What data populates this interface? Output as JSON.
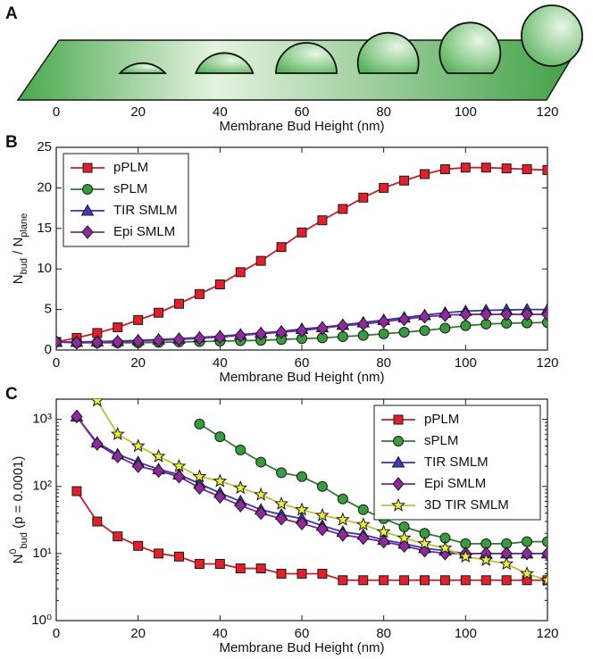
{
  "chart_data": [
    {
      "type": "illustration",
      "label": "A",
      "xlabel": "Membrane Bud Height (nm)",
      "xlim": [
        0,
        120
      ],
      "xticks": [
        0,
        20,
        40,
        60,
        80,
        100,
        120
      ],
      "x": [
        20,
        40,
        60,
        80,
        100,
        120
      ]
    },
    {
      "type": "line",
      "label": "B",
      "xlabel": "Membrane Bud Height (nm)",
      "ylabel_parts": [
        {
          "text": "N"
        },
        {
          "text": "bud",
          "style": "sub"
        },
        {
          "text": " / N"
        },
        {
          "text": "plane",
          "style": "sub"
        }
      ],
      "xlim": [
        0,
        120
      ],
      "xticks": [
        0,
        20,
        40,
        60,
        80,
        100,
        120
      ],
      "ylim": [
        0,
        25
      ],
      "yticks": [
        0,
        5,
        10,
        15,
        20,
        25
      ],
      "log": false,
      "legend": "upper left",
      "x": [
        0,
        5,
        10,
        15,
        20,
        25,
        30,
        35,
        40,
        45,
        50,
        55,
        60,
        65,
        70,
        75,
        80,
        85,
        90,
        95,
        100,
        105,
        110,
        115,
        120
      ],
      "series": [
        {
          "name": "pPLM",
          "color": "#e0202a",
          "line_color": "#c81e24",
          "marker": "square",
          "values": [
            1,
            1.5,
            2.1,
            2.8,
            3.7,
            4.6,
            5.7,
            6.9,
            8.1,
            9.6,
            11.0,
            12.7,
            14.5,
            16.0,
            17.4,
            18.8,
            20.0,
            20.9,
            21.7,
            22.3,
            22.5,
            22.5,
            22.4,
            22.3,
            22.2
          ]
        },
        {
          "name": "sPLM",
          "color": "#3a9a3e",
          "line_color": "#2f7a33",
          "marker": "circle",
          "values": [
            1,
            0.9,
            0.9,
            0.9,
            0.9,
            0.95,
            1.0,
            1.05,
            1.1,
            1.15,
            1.2,
            1.3,
            1.4,
            1.5,
            1.65,
            1.8,
            2.0,
            2.2,
            2.4,
            2.7,
            3.0,
            3.2,
            3.3,
            3.35,
            3.4
          ]
        },
        {
          "name": "TIR SMLM",
          "color": "#3c3cc0",
          "line_color": "#3535b0",
          "marker": "triangle",
          "values": [
            1,
            1.0,
            1.05,
            1.1,
            1.2,
            1.3,
            1.4,
            1.55,
            1.7,
            1.9,
            2.1,
            2.3,
            2.6,
            2.8,
            3.1,
            3.4,
            3.7,
            4.0,
            4.3,
            4.6,
            4.8,
            4.9,
            4.95,
            5.0,
            5.0
          ]
        },
        {
          "name": "Epi SMLM",
          "color": "#8e2a9e",
          "line_color": "#7d2590",
          "marker": "diamond",
          "values": [
            1,
            0.9,
            0.95,
            1.0,
            1.1,
            1.2,
            1.3,
            1.45,
            1.6,
            1.8,
            2.0,
            2.2,
            2.4,
            2.7,
            3.0,
            3.2,
            3.5,
            3.8,
            4.1,
            4.3,
            4.4,
            4.4,
            4.4,
            4.4,
            4.4
          ]
        }
      ]
    },
    {
      "type": "line",
      "label": "C",
      "xlabel": "Membrane Bud Height (nm)",
      "ylabel_parts": [
        {
          "text": "N"
        },
        {
          "text": "0",
          "style": "sup"
        },
        {
          "text": "bud",
          "style": "sub"
        },
        {
          "text": " (p = 0.0001)"
        }
      ],
      "xlim": [
        0,
        120
      ],
      "xticks": [
        0,
        20,
        40,
        60,
        80,
        100,
        120
      ],
      "ylim": [
        1,
        2000
      ],
      "yticks": [
        {
          "value": 1,
          "label": "10⁰"
        },
        {
          "value": 10,
          "label": "10¹"
        },
        {
          "value": 100,
          "label": "10²"
        },
        {
          "value": 1000,
          "label": "10³"
        }
      ],
      "log": true,
      "legend": "upper right",
      "x": [
        0,
        5,
        10,
        15,
        20,
        25,
        30,
        35,
        40,
        45,
        50,
        55,
        60,
        65,
        70,
        75,
        80,
        85,
        90,
        95,
        100,
        105,
        110,
        115,
        120
      ],
      "series": [
        {
          "name": "pPLM",
          "color": "#e0202a",
          "line_color": "#c81e24",
          "marker": "square",
          "values": [
            null,
            85,
            30,
            18,
            13,
            10,
            9,
            7,
            7,
            6,
            6,
            5,
            5,
            5,
            4,
            4,
            4,
            4,
            4,
            4,
            4,
            4,
            4,
            4,
            4
          ]
        },
        {
          "name": "sPLM",
          "color": "#3a9a3e",
          "line_color": "#2f7a33",
          "marker": "circle",
          "values": [
            null,
            null,
            null,
            null,
            null,
            null,
            null,
            850,
            550,
            350,
            230,
            160,
            140,
            100,
            65,
            45,
            33,
            25,
            20,
            17,
            14,
            14,
            14,
            15,
            15
          ]
        },
        {
          "name": "TIR SMLM",
          "color": "#3c3cc0",
          "line_color": "#3535b0",
          "marker": "triangle",
          "values": [
            null,
            1100,
            450,
            300,
            230,
            180,
            150,
            110,
            80,
            60,
            45,
            38,
            33,
            26,
            21,
            19,
            16,
            14,
            12,
            11,
            10,
            10,
            10,
            10,
            10
          ]
        },
        {
          "name": "Epi SMLM",
          "color": "#8e2a9e",
          "line_color": "#7d2590",
          "marker": "diamond",
          "values": [
            null,
            1100,
            430,
            280,
            200,
            170,
            140,
            95,
            70,
            52,
            40,
            33,
            28,
            23,
            19,
            17,
            15,
            13,
            11,
            10,
            10,
            10,
            10,
            10,
            10
          ]
        },
        {
          "name": "3D TIR SMLM",
          "color": "#eeee40",
          "line_color": "#b6c23a",
          "marker": "star",
          "values": [
            null,
            null,
            1900,
            600,
            400,
            280,
            200,
            140,
            120,
            95,
            75,
            55,
            45,
            37,
            32,
            27,
            21,
            17,
            14,
            12,
            9,
            8,
            7,
            5,
            4
          ]
        }
      ]
    }
  ]
}
